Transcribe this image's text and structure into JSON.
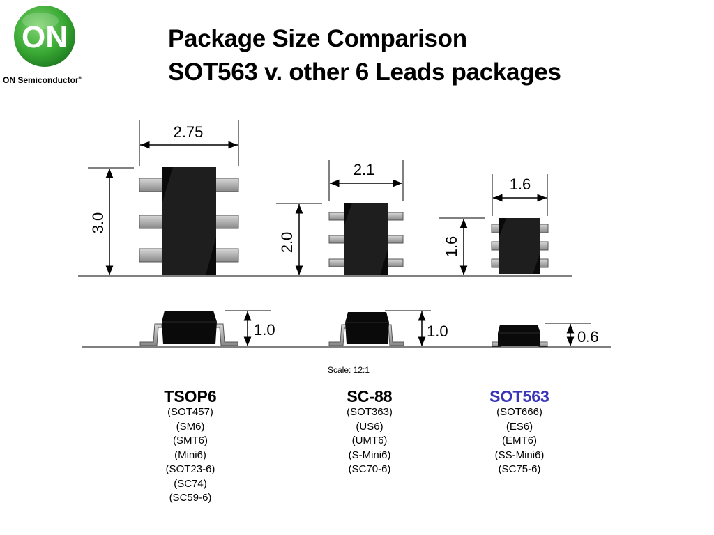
{
  "logo": {
    "text": "ON",
    "company": "ON Semiconductor",
    "registered": "®"
  },
  "title": {
    "line1": "Package Size Comparison",
    "line2": "SOT563 v. other 6 Leads packages"
  },
  "dimensions": {
    "tsop6": {
      "width": "2.75",
      "length": "3.0",
      "height": "1.0"
    },
    "sc88": {
      "width": "2.1",
      "length": "2.0",
      "height": "1.0"
    },
    "sot563": {
      "width": "1.6",
      "length": "1.6",
      "height": "0.6"
    }
  },
  "scale": "Scale: 12:1",
  "packages": [
    {
      "name": "TSOP6",
      "aliases": [
        "(SOT457)",
        "(SM6)",
        "(SMT6)",
        "(Mini6)",
        "(SOT23-6)",
        "(SC74)",
        "(SC59-6)"
      ]
    },
    {
      "name": "SC-88",
      "aliases": [
        "(SOT363)",
        "(US6)",
        "(UMT6)",
        "(S-Mini6)",
        "(SC70-6)"
      ]
    },
    {
      "name": "SOT563",
      "aliases": [
        "(SOT666)",
        "(ES6)",
        "(EMT6)",
        "(SS-Mini6)",
        "(SC75-6)"
      ]
    }
  ],
  "colors": {
    "logo_green": "#3aaa35",
    "highlight": "#3a35b8",
    "lead": "#a8a8a8",
    "body": "#0a0a0a"
  }
}
